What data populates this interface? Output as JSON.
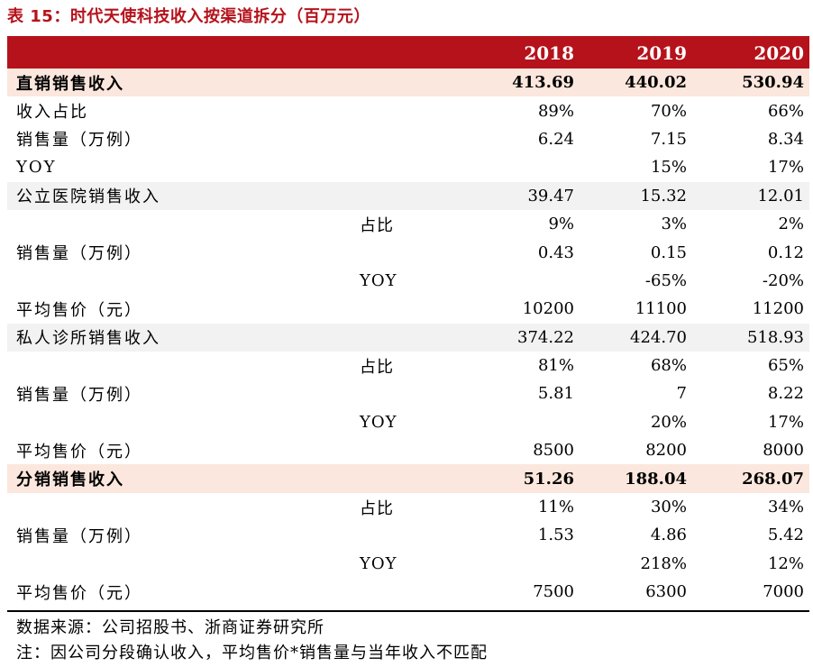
{
  "title": "表 15：时代天使科技收入按渠道拆分（百万元）",
  "columns": [
    "",
    "2018",
    "2019",
    "2020"
  ],
  "rows": [
    {
      "label": "直销销售收入",
      "sub": "",
      "values": [
        "413.69",
        "440.02",
        "530.94"
      ],
      "style": "shaded bold"
    },
    {
      "label": "收入占比",
      "sub": "",
      "values": [
        "89%",
        "70%",
        "66%"
      ],
      "style": ""
    },
    {
      "label": "销售量（万例）",
      "sub": "",
      "values": [
        "6.24",
        "7.15",
        "8.34"
      ],
      "style": ""
    },
    {
      "label": "YOY",
      "sub": "",
      "values": [
        "",
        "15%",
        "17%"
      ],
      "style": ""
    },
    {
      "label": "公立医院销售收入",
      "sub": "",
      "values": [
        "39.47",
        "15.32",
        "12.01"
      ],
      "style": "gray"
    },
    {
      "label": "",
      "sub": "占比",
      "values": [
        "9%",
        "3%",
        "2%"
      ],
      "style": ""
    },
    {
      "label": "销售量（万例）",
      "sub": "",
      "values": [
        "0.43",
        "0.15",
        "0.12"
      ],
      "style": ""
    },
    {
      "label": "",
      "sub": "YOY",
      "values": [
        "",
        "-65%",
        "-20%"
      ],
      "style": ""
    },
    {
      "label": "平均售价（元）",
      "sub": "",
      "values": [
        "10200",
        "11100",
        "11200"
      ],
      "style": ""
    },
    {
      "label": "私人诊所销售收入",
      "sub": "",
      "values": [
        "374.22",
        "424.70",
        "518.93"
      ],
      "style": "gray"
    },
    {
      "label": "",
      "sub": "占比",
      "values": [
        "81%",
        "68%",
        "65%"
      ],
      "style": ""
    },
    {
      "label": "销售量（万例）",
      "sub": "",
      "values": [
        "5.81",
        "7",
        "8.22"
      ],
      "style": ""
    },
    {
      "label": "",
      "sub": "YOY",
      "values": [
        "",
        "20%",
        "17%"
      ],
      "style": ""
    },
    {
      "label": "平均售价（元）",
      "sub": "",
      "values": [
        "8500",
        "8200",
        "8000"
      ],
      "style": ""
    },
    {
      "label": "分销销售收入",
      "sub": "",
      "values": [
        "51.26",
        "188.04",
        "268.07"
      ],
      "style": "shaded bold"
    },
    {
      "label": "",
      "sub": "占比",
      "values": [
        "11%",
        "30%",
        "34%"
      ],
      "style": ""
    },
    {
      "label": "销售量（万例）",
      "sub": "",
      "values": [
        "1.53",
        "4.86",
        "5.42"
      ],
      "style": ""
    },
    {
      "label": "",
      "sub": "YOY",
      "values": [
        "",
        "218%",
        "12%"
      ],
      "style": ""
    },
    {
      "label": "平均售价（元）",
      "sub": "",
      "values": [
        "7500",
        "6300",
        "7000"
      ],
      "style": ""
    }
  ],
  "footnotes": {
    "source": "数据来源：公司招股书、浙商证券研究所",
    "note": "注：因公司分段确认收入，平均售价*销售量与当年收入不匹配"
  },
  "colors": {
    "accent": "#b5121b",
    "shade": "#fbe7dd",
    "gray": "#f2f2f2"
  }
}
